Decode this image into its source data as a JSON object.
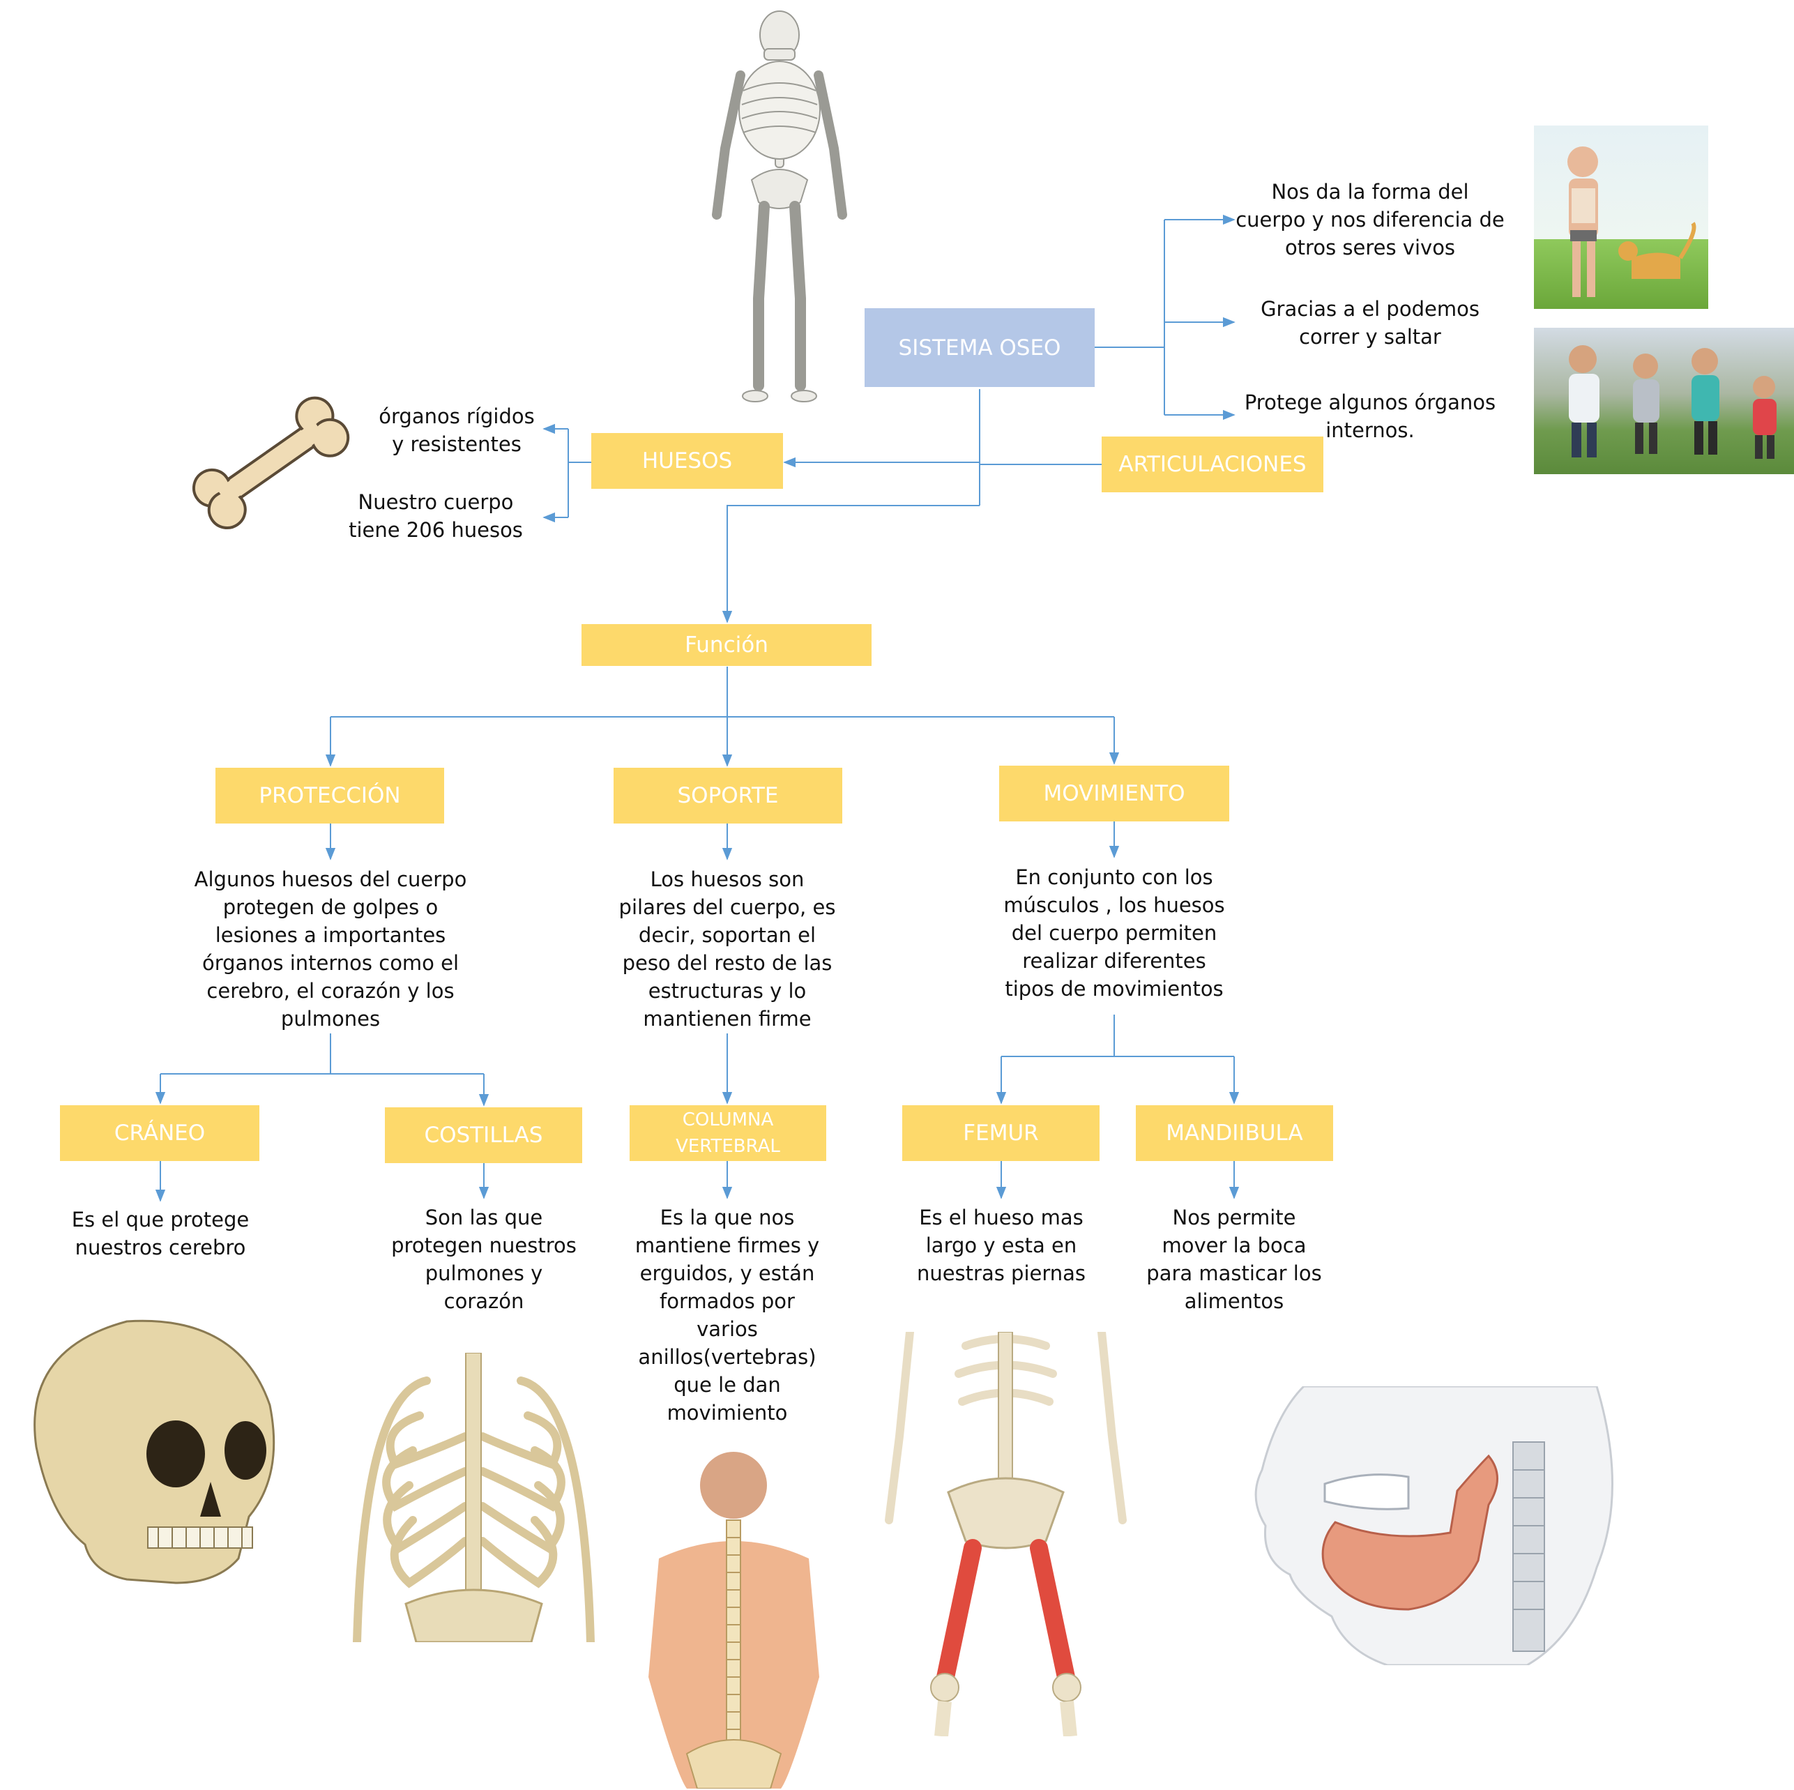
{
  "colors": {
    "box_yellow": "#fdd96b",
    "box_blue": "#b4c7e7",
    "connector": "#5b9bd5"
  },
  "nodes": {
    "sistema": "SISTEMA OSEO",
    "huesos": "HUESOS",
    "articulaciones": "ARTICULACIONES",
    "funcion": "Función",
    "proteccion": "PROTECCIÓN",
    "soporte": "SOPORTE",
    "movimiento": "MOVIMIENTO",
    "craneo": "CRÁNEO",
    "costillas": "COSTILLAS",
    "columna_line1": "COLUMNA",
    "columna_line2": "VERTEBRAL",
    "femur": "FEMUR",
    "mandibula": "MANDIIBULA"
  },
  "texts": {
    "forma": "Nos da la forma del\ncuerpo y nos diferencia de\notros seres vivos",
    "correr": "Gracias a el podemos\ncorrer y saltar",
    "protege": "Protege algunos órganos\ninternos.",
    "organos": "órganos rígidos\ny resistentes",
    "cuerpo206": "Nuestro cuerpo\ntiene 206 huesos",
    "proteccion_desc": "Algunos huesos del cuerpo\nprotegen de golpes o\nlesiones a importantes\nórganos internos como el\ncerebro, el corazón y los\npulmones",
    "soporte_desc": "Los huesos son\npilares del cuerpo, es\ndecir, soportan el\npeso del resto de las\nestructuras y lo\nmantienen firme",
    "movimiento_desc": "En conjunto con los\nmúsculos , los huesos\ndel cuerpo permiten\nrealizar diferentes\ntipos de movimientos",
    "craneo_desc": "Es el que protege\nnuestros cerebro",
    "costillas_desc": "Son las que\nprotegen nuestros\npulmones y\ncorazón",
    "columna_desc": "Es la que nos\nmantiene firmes y\nerguidos, y están\nformados por\nvarios\nanillos(vertebras)\nque le dan\nmovimiento",
    "femur_desc": "Es el hueso mas\nlargo y esta en\nnuestras piernas",
    "mandibula_desc": "Nos permite\nmover la boca\npara masticar los\nalimentos"
  },
  "images": [
    "skeleton-image",
    "bone-image",
    "man-cat-xray-image",
    "children-running-image",
    "skull-image",
    "ribcage-image",
    "spine-back-image",
    "femur-skeleton-image",
    "jaw-image"
  ]
}
